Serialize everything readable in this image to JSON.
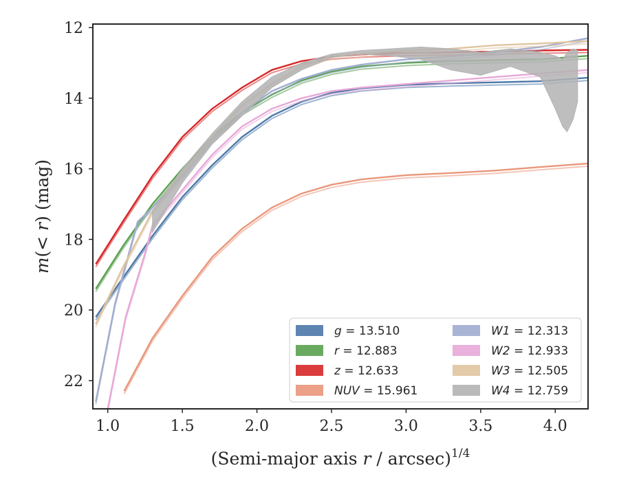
{
  "chart_data": {
    "type": "line",
    "title": "",
    "xlabel": "(Semi-major axis r / arcsec)",
    "xlabel_parts": {
      "pre": "(Semi-major axis ",
      "var": "r",
      "post": " / arcsec)",
      "sup": "1/4"
    },
    "ylabel": "m(< r) (mag)",
    "ylabel_parts": {
      "var1": "m",
      "mid": "(< ",
      "var2": "r",
      "post": ") (mag)"
    },
    "xlim": [
      0.9,
      4.22
    ],
    "ylim": [
      22.8,
      11.9
    ],
    "y_inverted": true,
    "xticks": [
      "1.0",
      "1.5",
      "2.0",
      "2.5",
      "3.0",
      "3.5",
      "4.0"
    ],
    "yticks": [
      "12",
      "14",
      "16",
      "18",
      "20",
      "22"
    ],
    "grid": false,
    "legend_position": "lower-right",
    "series": [
      {
        "name": "g = 13.510",
        "label_var": "g",
        "label_value": "13.510",
        "color": "#4c78a8",
        "x": [
          0.92,
          1.1,
          1.3,
          1.5,
          1.7,
          1.9,
          2.1,
          2.3,
          2.5,
          2.7,
          3.0,
          3.3,
          3.6,
          3.9,
          4.22
        ],
        "y": [
          20.2,
          19.1,
          17.9,
          16.8,
          15.9,
          15.1,
          14.5,
          14.1,
          13.85,
          13.72,
          13.62,
          13.58,
          13.55,
          13.52,
          13.42
        ]
      },
      {
        "name": "r = 12.883",
        "label_var": "r",
        "label_value": "12.883",
        "color": "#59a14f",
        "x": [
          0.92,
          1.1,
          1.3,
          1.5,
          1.7,
          1.9,
          2.1,
          2.3,
          2.5,
          2.7,
          3.0,
          3.3,
          3.6,
          3.9,
          4.22
        ],
        "y": [
          19.4,
          18.2,
          17.0,
          16.0,
          15.1,
          14.4,
          13.9,
          13.5,
          13.25,
          13.1,
          13.0,
          12.95,
          12.92,
          12.9,
          12.8
        ]
      },
      {
        "name": "z = 12.633",
        "label_var": "z",
        "label_value": "12.633",
        "color": "#d62728",
        "x": [
          0.92,
          1.1,
          1.3,
          1.5,
          1.7,
          1.9,
          2.1,
          2.3,
          2.5,
          2.7,
          3.0,
          3.3,
          3.6,
          3.9,
          4.22
        ],
        "y": [
          18.7,
          17.5,
          16.2,
          15.1,
          14.3,
          13.7,
          13.2,
          12.95,
          12.82,
          12.76,
          12.72,
          12.7,
          12.68,
          12.65,
          12.63
        ]
      },
      {
        "name": "NUV = 15.961",
        "label_var": "NUV",
        "label_value": "15.961",
        "color": "#e9967a",
        "x": [
          1.11,
          1.3,
          1.5,
          1.7,
          1.9,
          2.1,
          2.3,
          2.5,
          2.7,
          3.0,
          3.3,
          3.6,
          3.9,
          4.22
        ],
        "y": [
          22.3,
          20.8,
          19.6,
          18.5,
          17.7,
          17.1,
          16.7,
          16.45,
          16.3,
          16.18,
          16.12,
          16.05,
          15.95,
          15.85
        ]
      },
      {
        "name": "W1 = 12.313",
        "label_var": "W1",
        "label_value": "12.313",
        "color": "#a0acd0",
        "x": [
          0.92,
          1.05,
          1.2,
          1.3,
          1.5,
          1.7,
          1.9,
          2.1,
          2.3,
          2.5,
          2.7,
          3.0,
          3.3,
          3.6,
          3.9,
          4.22
        ],
        "y": [
          22.6,
          19.8,
          17.5,
          17.1,
          16.2,
          15.2,
          14.4,
          13.8,
          13.45,
          13.2,
          13.05,
          12.9,
          12.82,
          12.7,
          12.55,
          12.3
        ]
      },
      {
        "name": "W2 = 12.933",
        "label_var": "W2",
        "label_value": "12.933",
        "color": "#e7a8d7",
        "x": [
          1.0,
          1.12,
          1.25,
          1.3,
          1.5,
          1.7,
          1.9,
          2.1,
          2.3,
          2.5,
          2.7,
          3.0,
          3.3,
          3.6,
          3.9,
          4.22
        ],
        "y": [
          22.8,
          20.2,
          18.4,
          17.6,
          16.6,
          15.6,
          14.8,
          14.3,
          14.0,
          13.8,
          13.7,
          13.6,
          13.5,
          13.4,
          13.3,
          13.2
        ]
      },
      {
        "name": "W3 = 12.505",
        "label_var": "W3",
        "label_value": "12.505",
        "color": "#e0c4a0",
        "x": [
          0.92,
          1.1,
          1.3,
          1.5,
          1.7,
          1.9,
          2.1,
          2.3,
          2.5,
          2.7,
          3.0,
          3.3,
          3.6,
          3.9,
          4.22
        ],
        "y": [
          20.4,
          18.8,
          17.2,
          16.1,
          15.1,
          14.2,
          13.6,
          13.1,
          12.8,
          12.75,
          12.65,
          12.6,
          12.5,
          12.45,
          12.38
        ]
      },
      {
        "name": "W4 = 12.759",
        "label_var": "W4",
        "label_value": "12.759",
        "color": "#b3b3b3",
        "x": [
          1.3,
          1.5,
          1.7,
          1.9,
          2.1,
          2.3,
          2.5,
          2.7,
          2.9,
          3.1,
          3.3,
          3.5,
          3.7,
          3.9,
          4.0,
          4.05,
          4.08,
          4.12,
          4.15
        ],
        "y_low": [
          17.8,
          16.4,
          15.3,
          14.5,
          13.7,
          13.2,
          12.85,
          12.75,
          12.8,
          12.9,
          13.2,
          13.35,
          13.1,
          13.4,
          14.3,
          14.8,
          14.95,
          14.6,
          14.1
        ],
        "y_high": [
          17.2,
          16.0,
          15.0,
          14.1,
          13.4,
          13.0,
          12.75,
          12.65,
          12.6,
          12.55,
          12.6,
          12.7,
          12.6,
          12.7,
          12.8,
          12.9,
          12.7,
          12.6,
          12.65
        ]
      }
    ]
  }
}
